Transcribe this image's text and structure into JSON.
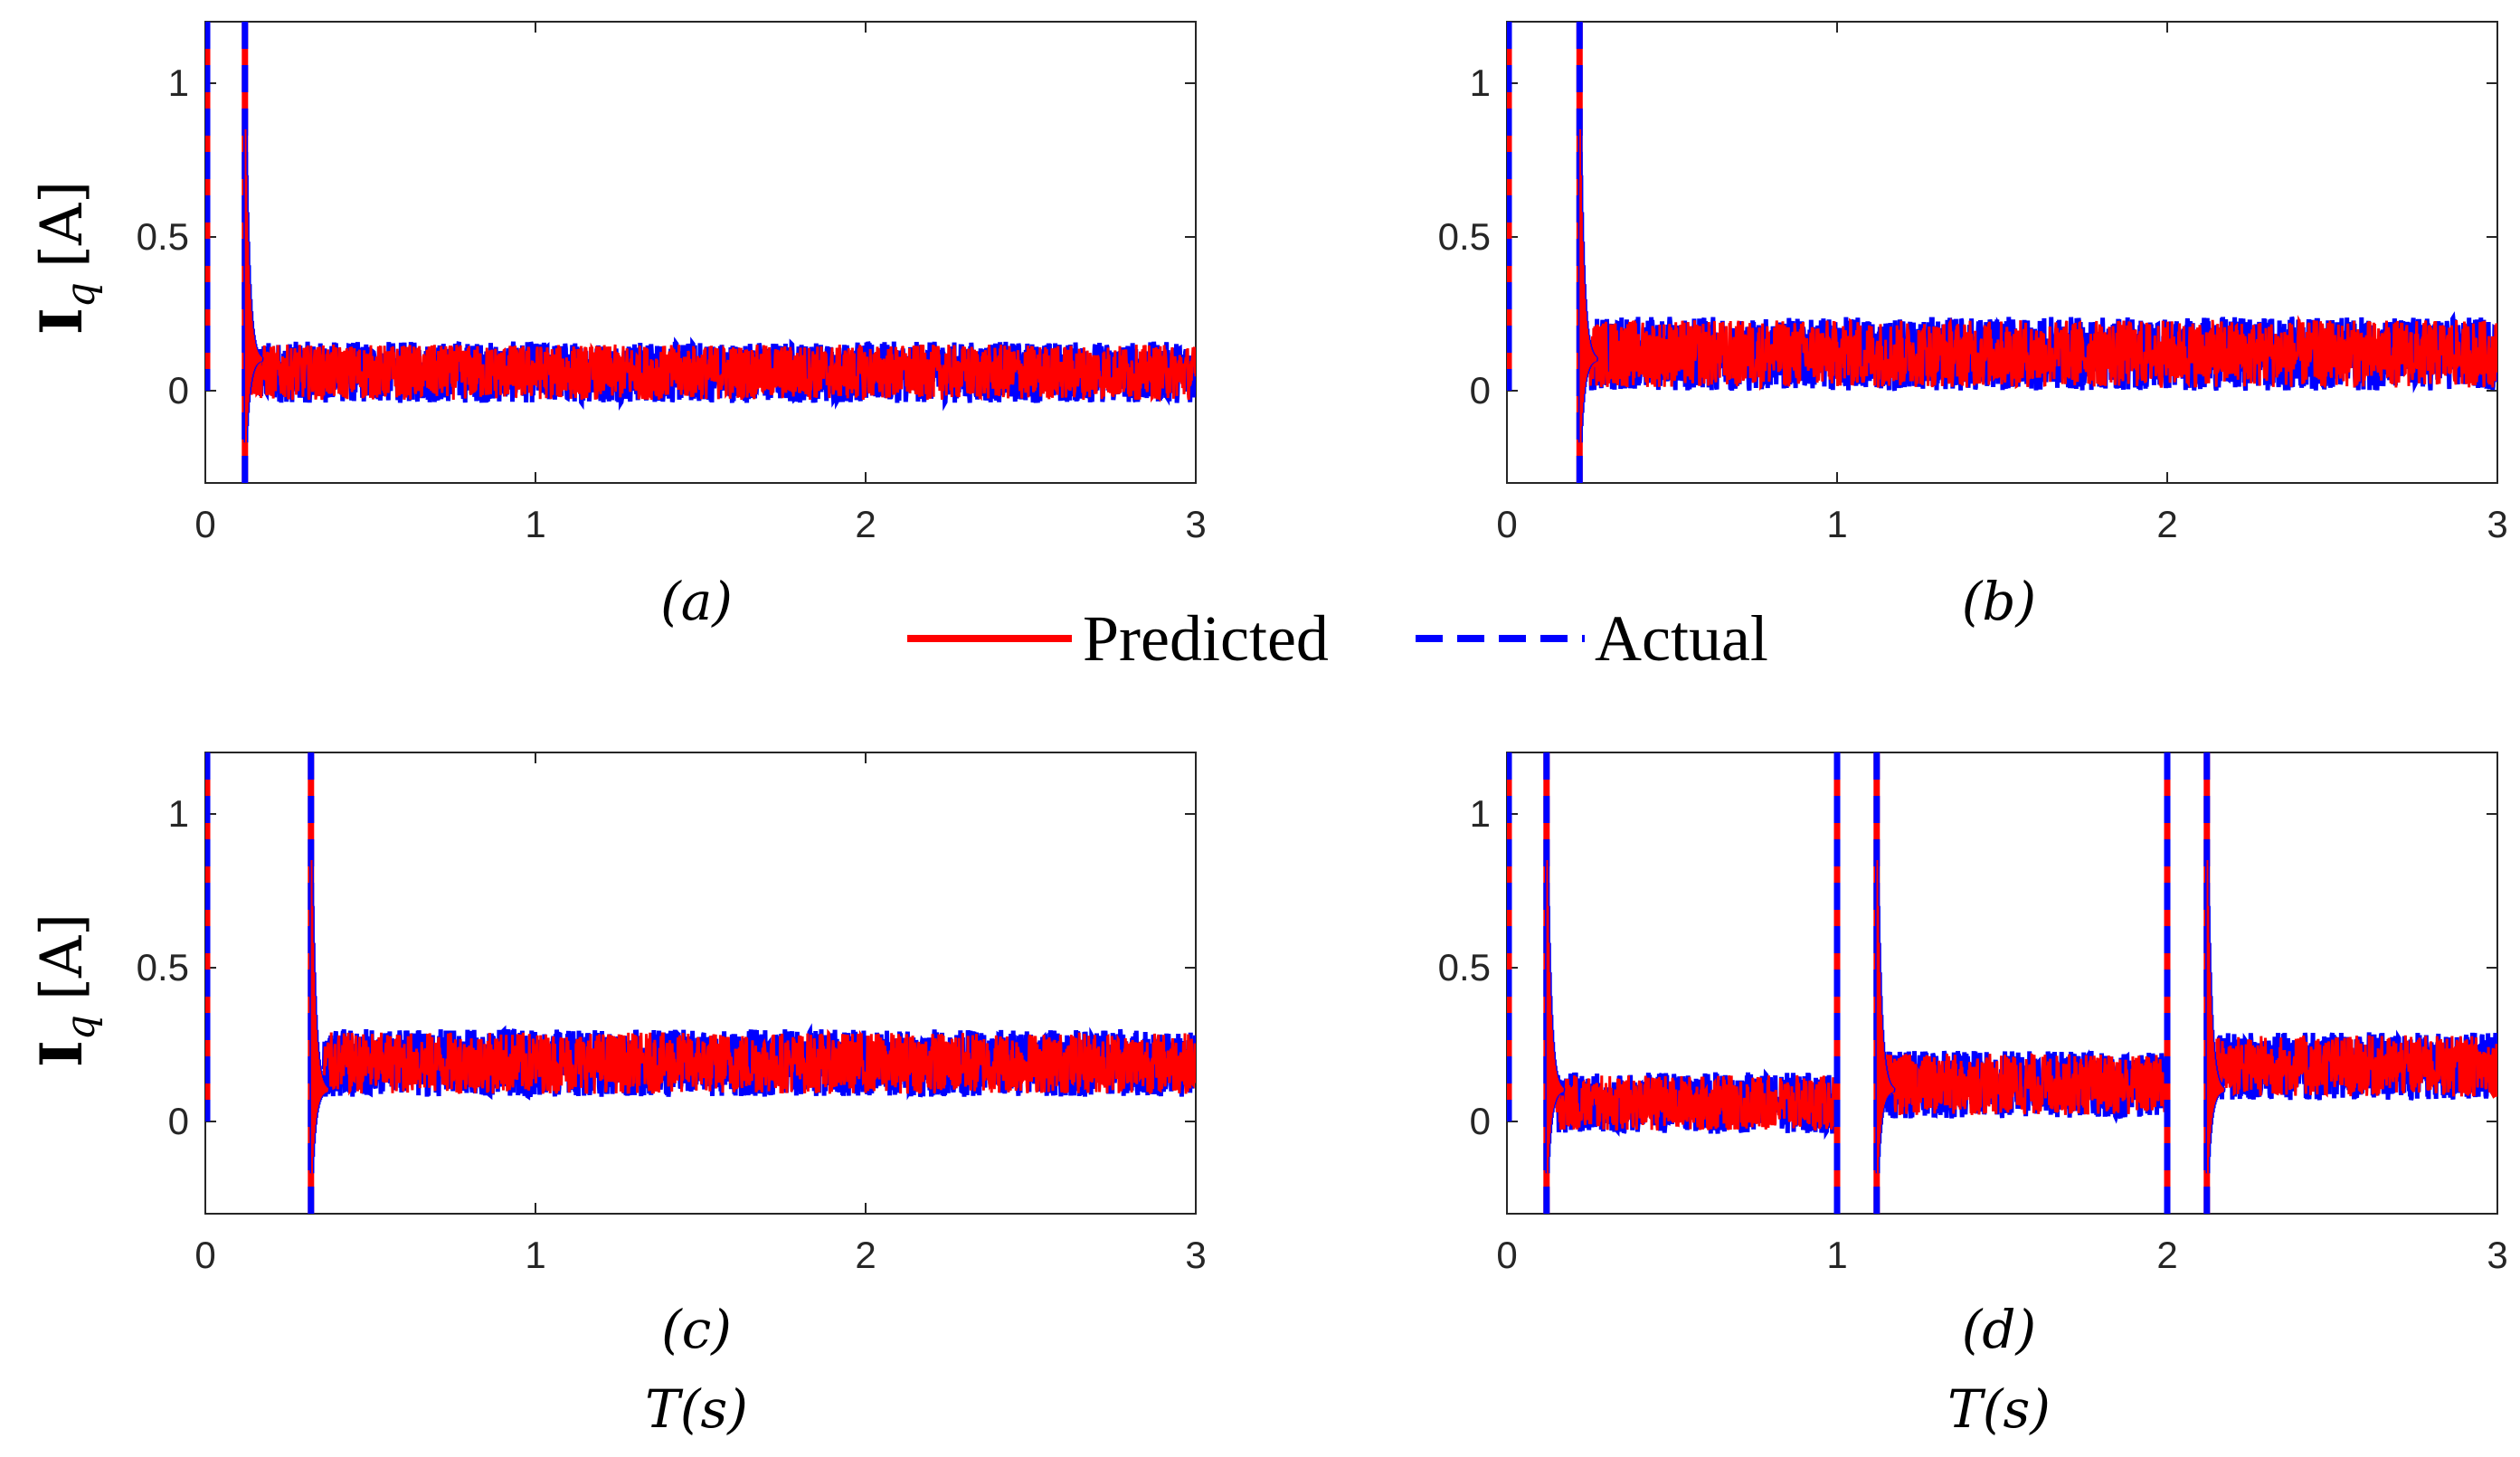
{
  "chart_data": [
    {
      "type": "line",
      "panel": "(a)",
      "caption": "(a)",
      "ylabel": "I_q [A]",
      "xlabel": "",
      "xlim": [
        0,
        3
      ],
      "ylim": [
        -0.3,
        1.2
      ],
      "xticks": [
        "0",
        "1",
        "2",
        "3"
      ],
      "yticks": [
        "0",
        "0.5",
        "1"
      ],
      "series": [
        {
          "name": "Predicted",
          "transients": [
            0.0,
            0.12
          ],
          "steady_segments": [
            {
              "t0": 0.14,
              "t1": 3.0,
              "mean": 0.06,
              "band": 0.09
            }
          ]
        },
        {
          "name": "Actual",
          "transients": [
            0.0,
            0.12
          ],
          "steady_segments": [
            {
              "t0": 0.14,
              "t1": 3.0,
              "mean": 0.06,
              "band": 0.1
            }
          ]
        }
      ]
    },
    {
      "type": "line",
      "panel": "(b)",
      "caption": "(b)",
      "ylabel": "",
      "xlabel": "",
      "xlim": [
        0,
        3
      ],
      "ylim": [
        -0.3,
        1.2
      ],
      "xticks": [
        "0",
        "1",
        "2",
        "3"
      ],
      "yticks": [
        "0",
        "0.5",
        "1"
      ],
      "series": [
        {
          "name": "Predicted",
          "transients": [
            0.0,
            0.22
          ],
          "steady_segments": [
            {
              "t0": 0.25,
              "t1": 3.0,
              "mean": 0.12,
              "band": 0.11
            }
          ]
        },
        {
          "name": "Actual",
          "transients": [
            0.0,
            0.22
          ],
          "steady_segments": [
            {
              "t0": 0.25,
              "t1": 3.0,
              "mean": 0.12,
              "band": 0.12
            }
          ]
        }
      ]
    },
    {
      "type": "line",
      "panel": "(c)",
      "caption": "(c)",
      "ylabel": "I_q [A]",
      "xlabel": "T(s)",
      "xlim": [
        0,
        3
      ],
      "ylim": [
        -0.3,
        1.2
      ],
      "xticks": [
        "0",
        "1",
        "2",
        "3"
      ],
      "yticks": [
        "0",
        "0.5",
        "1"
      ],
      "series": [
        {
          "name": "Predicted",
          "transients": [
            0.0,
            0.32
          ],
          "steady_segments": [
            {
              "t0": 0.36,
              "t1": 3.0,
              "mean": 0.19,
              "band": 0.1
            }
          ]
        },
        {
          "name": "Actual",
          "transients": [
            0.0,
            0.32
          ],
          "steady_segments": [
            {
              "t0": 0.36,
              "t1": 3.0,
              "mean": 0.19,
              "band": 0.11
            }
          ]
        }
      ]
    },
    {
      "type": "line",
      "panel": "(d)",
      "caption": "(d)",
      "ylabel": "",
      "xlabel": "T(s)",
      "xlim": [
        0,
        3
      ],
      "ylim": [
        -0.3,
        1.2
      ],
      "xticks": [
        "0",
        "1",
        "2",
        "3"
      ],
      "yticks": [
        "0",
        "0.5",
        "1"
      ],
      "series": [
        {
          "name": "Predicted",
          "transients": [
            0.0,
            0.12,
            1.0,
            1.12,
            2.0,
            2.12
          ],
          "steady_segments": [
            {
              "t0": 0.15,
              "t1": 1.0,
              "mean": 0.06,
              "band": 0.09
            },
            {
              "t0": 1.15,
              "t1": 2.0,
              "mean": 0.12,
              "band": 0.1
            },
            {
              "t0": 2.15,
              "t1": 3.0,
              "mean": 0.18,
              "band": 0.1
            }
          ]
        },
        {
          "name": "Actual",
          "transients": [
            0.0,
            0.12,
            1.0,
            1.12,
            2.0,
            2.12
          ],
          "steady_segments": [
            {
              "t0": 0.15,
              "t1": 1.0,
              "mean": 0.06,
              "band": 0.1
            },
            {
              "t0": 1.15,
              "t1": 2.0,
              "mean": 0.12,
              "band": 0.11
            },
            {
              "t0": 2.15,
              "t1": 3.0,
              "mean": 0.18,
              "band": 0.11
            }
          ]
        }
      ]
    }
  ],
  "legend": {
    "entries": [
      {
        "label": "Predicted",
        "color": "#ff0000",
        "style": "solid"
      },
      {
        "label": "Actual",
        "color": "#0000ff",
        "style": "dashed"
      }
    ],
    "placement": "center"
  },
  "labels": {
    "ylabel_main": "I",
    "ylabel_sub": "q",
    "ylabel_unit": "[A]",
    "xlabel_text": "T(s)"
  }
}
